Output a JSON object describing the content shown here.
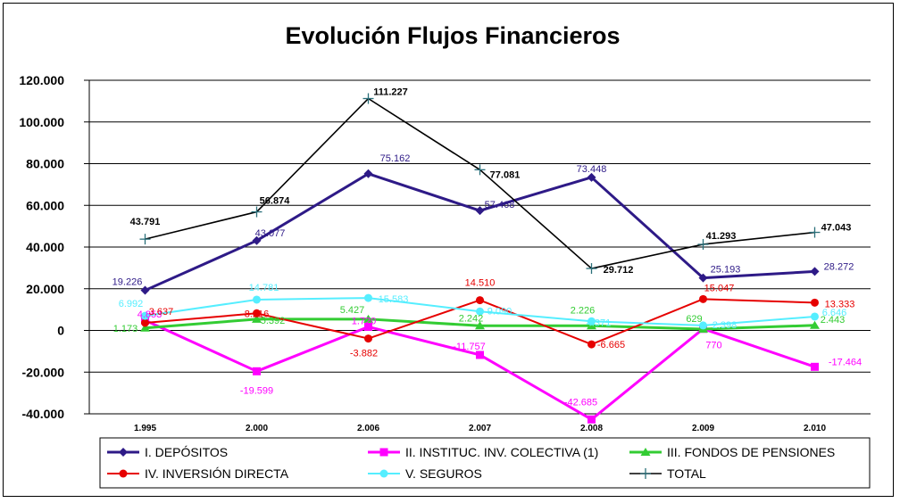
{
  "chart_data": {
    "type": "line",
    "title": "Evolución Flujos Financieros",
    "xlabel": "",
    "ylabel": "",
    "ylim": [
      -40000,
      120000
    ],
    "yticks": [
      {
        "value": -40000,
        "label": "-40.000"
      },
      {
        "value": -20000,
        "label": "-20.000"
      },
      {
        "value": 0,
        "label": "0"
      },
      {
        "value": 20000,
        "label": "20.000"
      },
      {
        "value": 40000,
        "label": "40.000"
      },
      {
        "value": 60000,
        "label": "60.000"
      },
      {
        "value": 80000,
        "label": "80.000"
      },
      {
        "value": 100000,
        "label": "100.000"
      },
      {
        "value": 120000,
        "label": "120.000"
      }
    ],
    "categories": [
      "1.995",
      "2.000",
      "2.006",
      "2.007",
      "2.008",
      "2.009",
      "2.010"
    ],
    "grid": "horizontal",
    "legend_position": "bottom",
    "series": [
      {
        "name": "I. DEPÓSITOS",
        "color": "#2e1a87",
        "marker": "diamond",
        "values": [
          19226,
          43077,
          75162,
          57468,
          73448,
          25193,
          28272
        ],
        "labels": [
          "19.226",
          "43.077",
          "75.162",
          "57.468",
          "73.448",
          "25.193",
          "28.272"
        ]
      },
      {
        "name": "II. INSTITUC. INV. COLECTIVA (1)",
        "color": "#ff00ff",
        "marker": "square",
        "values": [
          4853,
          -19599,
          1720,
          -11757,
          -42685,
          770,
          -17464
        ],
        "labels": [
          "4.853",
          "-19.599",
          "1.720",
          "-11.757",
          "-42.685",
          "770",
          "-17.464"
        ]
      },
      {
        "name": "III. FONDOS DE PENSIONES",
        "color": "#33cc33",
        "marker": "triangle",
        "values": [
          1173,
          5392,
          5427,
          2242,
          2226,
          629,
          2443
        ],
        "labels": [
          "1.173",
          "5.392",
          "5.427",
          "2.242",
          "2.226",
          "629",
          "2.443"
        ]
      },
      {
        "name": "IV. INVERSIÓN DIRECTA",
        "color": "#e60000",
        "marker": "circle",
        "values": [
          3637,
          8216,
          -3882,
          14510,
          -6665,
          15047,
          13333
        ],
        "labels": [
          "3.637",
          "8.216",
          "-3.882",
          "14.510",
          "-6.665",
          "15.047",
          "13.333"
        ]
      },
      {
        "name": "V. SEGUROS",
        "color": "#55eeff",
        "marker": "circle",
        "values": [
          6992,
          14781,
          15583,
          9090,
          4371,
          2398,
          6646
        ],
        "labels": [
          "6.992",
          "14.781",
          "15.583",
          "9.090",
          "4.371",
          "2.398",
          "6.646"
        ]
      },
      {
        "name": "TOTAL",
        "color": "#000000",
        "marker": "plus",
        "values": [
          43791,
          56874,
          111227,
          77081,
          29712,
          41293,
          47043
        ],
        "labels": [
          "43.791",
          "56.874",
          "111.227",
          "77.081",
          "29.712",
          "41.293",
          "47.043"
        ]
      }
    ]
  }
}
